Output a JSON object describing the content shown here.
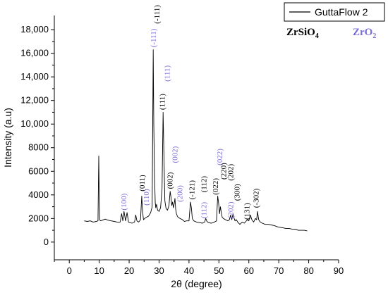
{
  "chart_data": {
    "type": "line",
    "xlabel": "2θ (degree)",
    "ylabel": "Intensity (a.u)",
    "xlim": [
      -5,
      90
    ],
    "ylim": [
      -1500,
      19200
    ],
    "x_ticks": [
      0,
      10,
      20,
      30,
      40,
      50,
      60,
      70,
      80,
      90
    ],
    "y_ticks": [
      0,
      2000,
      4000,
      6000,
      8000,
      10000,
      12000,
      14000,
      16000,
      18000
    ],
    "y_tick_labels": [
      "0",
      "2000",
      "4000",
      "6000",
      "8000",
      "10,000",
      "12,000",
      "14,000",
      "16,000",
      "18,000"
    ],
    "legend": {
      "label": "GuttaFlow 2",
      "position": "top-right"
    },
    "phases": [
      {
        "name": "ZrSiO",
        "subscript": "4",
        "color": "#000000"
      },
      {
        "name": "ZrO",
        "subscript": "2",
        "color": "#7b6fd6"
      }
    ],
    "series": [
      {
        "name": "GuttaFlow 2",
        "color": "#000000",
        "x": [
          5,
          6,
          7,
          8,
          9,
          9.6,
          9.85,
          10.0,
          10.15,
          10.4,
          11,
          12,
          13,
          14,
          15,
          16,
          17,
          17.5,
          17.9,
          18.3,
          18.8,
          19.3,
          19.8,
          20.3,
          21,
          21.8,
          22.2,
          22.6,
          23.2,
          23.8,
          24.2,
          24.5,
          24.8,
          25.2,
          25.7,
          26.5,
          27.2,
          27.7,
          28.05,
          28.25,
          28.45,
          28.7,
          28.9,
          29.15,
          29.5,
          30,
          30.5,
          31.0,
          31.35,
          31.65,
          31.95,
          32.3,
          32.8,
          33.3,
          33.7,
          34.0,
          34.25,
          34.5,
          34.8,
          35.1,
          35.3,
          35.55,
          35.8,
          36.1,
          36.4,
          37,
          37.8,
          38.5,
          39.2,
          40.0,
          40.5,
          40.8,
          41.1,
          41.6,
          42.5,
          43.5,
          44.5,
          45.2,
          45.6,
          46.0,
          46.5,
          47.5,
          48.5,
          49.2,
          49.6,
          49.9,
          50.2,
          50.5,
          50.8,
          51.1,
          51.5,
          52.2,
          53.0,
          53.5,
          53.9,
          54.3,
          54.7,
          55.1,
          55.4,
          55.8,
          56.3,
          57,
          57.8,
          58.5,
          59.5,
          60.0,
          60.5,
          61,
          61.6,
          62.2,
          62.6,
          62.9,
          63.3,
          63.8,
          64.5,
          65.5,
          66.5,
          67.5,
          68.5,
          69.5,
          70.5,
          71.5,
          72.5,
          73.5,
          74.5,
          75.5,
          76.5,
          77.5,
          78.5,
          79.5
        ],
        "values": [
          1800,
          1750,
          1800,
          1700,
          1750,
          1800,
          7300,
          4000,
          1900,
          1800,
          1850,
          1950,
          1850,
          1800,
          1750,
          1700,
          1700,
          2400,
          1800,
          2600,
          1800,
          2500,
          1700,
          1650,
          1600,
          1700,
          2300,
          1800,
          1700,
          1900,
          3900,
          2600,
          1900,
          2000,
          2100,
          2200,
          2500,
          3000,
          16300,
          10000,
          6100,
          3400,
          2900,
          3200,
          2700,
          2600,
          2900,
          4500,
          11000,
          7000,
          3500,
          2900,
          2700,
          3100,
          4300,
          3800,
          3100,
          3400,
          2900,
          3300,
          3700,
          2800,
          2400,
          2200,
          2100,
          2000,
          1900,
          1750,
          1800,
          1800,
          3400,
          2900,
          2000,
          1800,
          1700,
          1650,
          1600,
          1700,
          2000,
          1750,
          1650,
          1600,
          1700,
          1800,
          3900,
          3300,
          2400,
          3000,
          2500,
          2100,
          2000,
          1900,
          1800,
          1900,
          2300,
          1900,
          2400,
          2000,
          1800,
          1900,
          1700,
          1500,
          1700,
          1600,
          1900,
          1800,
          2300,
          1900,
          1700,
          2000,
          1900,
          2600,
          1900,
          1700,
          1600,
          1500,
          1500,
          1450,
          1400,
          1300,
          1250,
          1200,
          1150,
          1150,
          1100,
          1100,
          1000,
          1000,
          1000,
          950
        ]
      }
    ],
    "annotations": [
      {
        "text": "(100)",
        "x": 18.1,
        "y": 2700,
        "color": "#7b6fd6"
      },
      {
        "text": "(011)",
        "x": 24.2,
        "y": 4300,
        "color": "#000000"
      },
      {
        "text": "(110)",
        "x": 25.7,
        "y": 3100,
        "color": "#7b6fd6"
      },
      {
        "text": "(-111)",
        "x": 28.0,
        "y": 16500,
        "color": "#7b6fd6"
      },
      {
        "text": "(-111)",
        "x": 29.2,
        "y": 18500,
        "color": "#000000"
      },
      {
        "text": "(111)",
        "x": 30.9,
        "y": 11200,
        "color": "#000000"
      },
      {
        "text": "(111)",
        "x": 32.6,
        "y": 13600,
        "color": "#7b6fd6"
      },
      {
        "text": "(002)",
        "x": 33.6,
        "y": 4500,
        "color": "#000000"
      },
      {
        "text": "(002)",
        "x": 35.2,
        "y": 6700,
        "color": "#7b6fd6"
      },
      {
        "text": "(200)",
        "x": 36.8,
        "y": 3400,
        "color": "#7b6fd6"
      },
      {
        "text": "(-121)",
        "x": 40.9,
        "y": 3600,
        "color": "#000000"
      },
      {
        "text": "(112)",
        "x": 44.9,
        "y": 4200,
        "color": "#000000"
      },
      {
        "text": "(112)",
        "x": 44.9,
        "y": 2000,
        "color": "#7b6fd6"
      },
      {
        "text": "(022)",
        "x": 48.7,
        "y": 4000,
        "color": "#000000"
      },
      {
        "text": "(022)",
        "x": 50.2,
        "y": 6500,
        "color": "#7b6fd6"
      },
      {
        "text": "(220)",
        "x": 51.4,
        "y": 5300,
        "color": "#000000"
      },
      {
        "text": "(202)",
        "x": 53.8,
        "y": 2000,
        "color": "#7b6fd6"
      },
      {
        "text": "(202)",
        "x": 53.8,
        "y": 5200,
        "color": "#000000"
      },
      {
        "text": "(300)",
        "x": 55.9,
        "y": 3500,
        "color": "#000000"
      },
      {
        "text": "(131)",
        "x": 59.2,
        "y": 1900,
        "color": "#000000"
      },
      {
        "text": "(-302)",
        "x": 62.3,
        "y": 2900,
        "color": "#000000"
      }
    ]
  }
}
